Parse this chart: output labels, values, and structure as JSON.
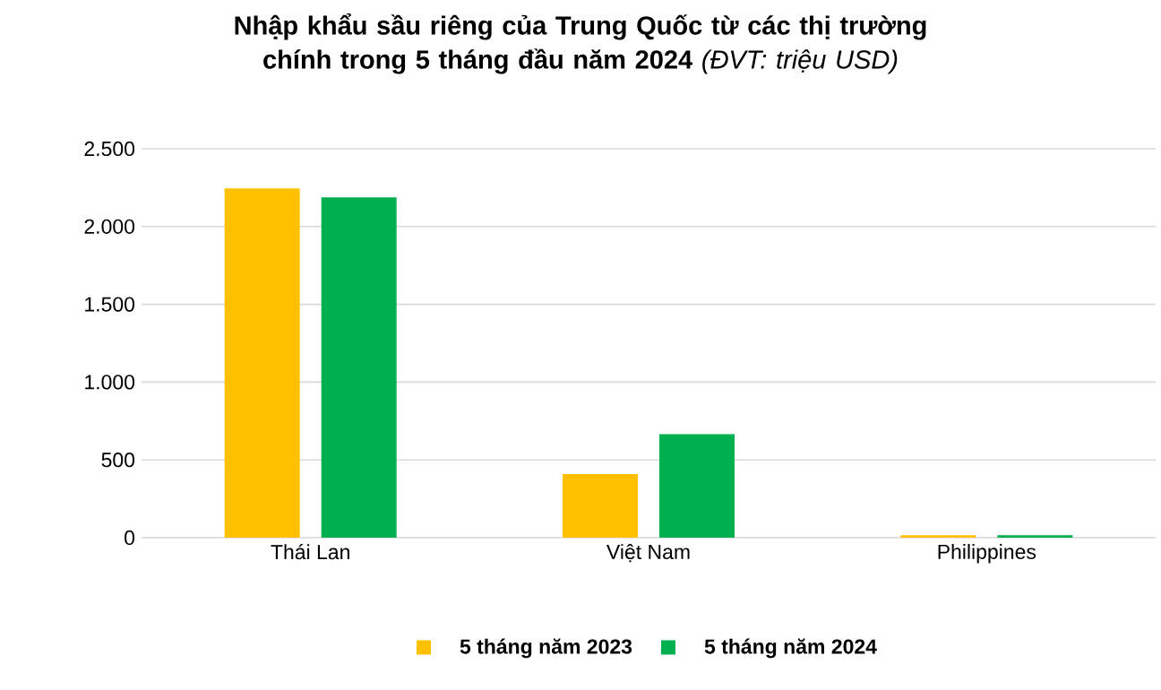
{
  "chart_data": {
    "type": "bar",
    "title": "Nhập khẩu sầu riêng của Trung Quốc từ các thị trường chính trong 5 tháng đầu năm 2024",
    "subtitle": "(ĐVT: triệu USD)",
    "categories": [
      "Thái Lan",
      "Việt Nam",
      "Philippines"
    ],
    "series": [
      {
        "name": "5 tháng năm 2023",
        "color": "#ffc000",
        "values": [
          2245,
          409,
          15
        ]
      },
      {
        "name": "5 tháng năm 2024",
        "color": "#00b050",
        "values": [
          2187,
          665,
          15
        ]
      }
    ],
    "ylim": [
      0,
      2500
    ],
    "yticks": [
      {
        "value": 0,
        "label": "0"
      },
      {
        "value": 500,
        "label": "500"
      },
      {
        "value": 1000,
        "label": "1.000"
      },
      {
        "value": 1500,
        "label": "1.500"
      },
      {
        "value": 2000,
        "label": "2.000"
      },
      {
        "value": 2500,
        "label": "2.500"
      }
    ],
    "grid": "y",
    "legend": "bottom"
  }
}
